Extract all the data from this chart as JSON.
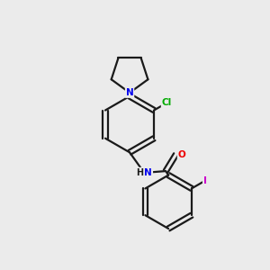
{
  "background_color": "#ebebeb",
  "bond_color": "#1a1a1a",
  "atom_colors": {
    "N": "#0000ee",
    "O": "#ee0000",
    "Cl": "#00aa00",
    "I": "#cc00cc",
    "C": "#1a1a1a",
    "H": "#1a1a1a"
  },
  "figsize": [
    3.0,
    3.0
  ],
  "dpi": 100,
  "lw": 1.6
}
